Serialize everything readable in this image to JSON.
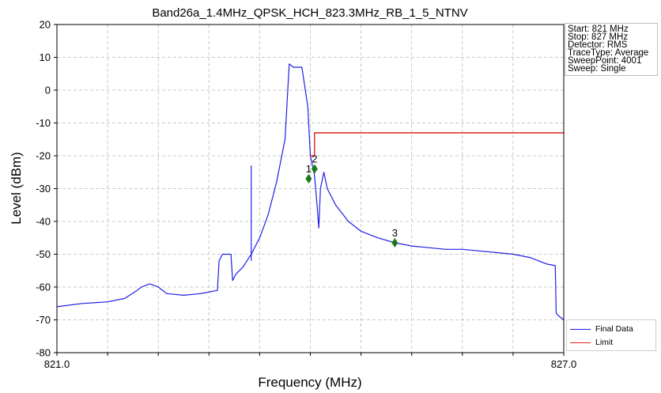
{
  "chart_data": {
    "type": "line",
    "title": "Band26a_1.4MHz_QPSK_HCH_823.3MHz_RB_1_5_NTNV",
    "xlabel": "Frequency (MHz)",
    "ylabel": "Level (dBm)",
    "xlim": [
      821.0,
      827.0
    ],
    "ylim": [
      -80,
      20
    ],
    "x_tick_labels": [
      "821.0",
      "827.0"
    ],
    "x_minor_ticks": [
      821.6,
      822.2,
      822.8,
      823.4,
      824.0,
      824.6,
      825.2,
      825.8,
      826.4
    ],
    "y_ticks": [
      -80,
      -70,
      -60,
      -50,
      -40,
      -30,
      -20,
      -10,
      0,
      10,
      20
    ],
    "grid": true,
    "legend_position": "bottom-right",
    "colors": {
      "final_data": "#1f1fe6",
      "limit": "#e02020",
      "marker": "#1a7a1a"
    },
    "series": [
      {
        "name": "Final Data",
        "x": [
          821.0,
          821.3,
          821.6,
          821.8,
          821.95,
          822.0,
          822.1,
          822.2,
          822.3,
          822.5,
          822.7,
          822.9,
          822.92,
          822.96,
          823.06,
          823.08,
          823.12,
          823.2,
          823.3,
          823.4,
          823.5,
          823.6,
          823.7,
          823.75,
          823.8,
          823.9,
          823.97,
          824.0,
          824.05,
          824.08,
          824.1,
          824.12,
          824.16,
          824.2,
          824.3,
          824.45,
          824.6,
          824.8,
          825.0,
          825.2,
          825.4,
          825.6,
          825.8,
          826.0,
          826.2,
          826.4,
          826.6,
          826.8,
          826.9,
          826.91,
          826.95,
          827.0
        ],
        "y": [
          -66,
          -65,
          -64.5,
          -63.5,
          -61,
          -60,
          -59,
          -60,
          -62,
          -62.5,
          -62,
          -61,
          -52,
          -50,
          -50,
          -58,
          -56,
          -54,
          -50,
          -45,
          -38,
          -28,
          -15,
          8,
          7,
          7,
          -5,
          -20,
          -26,
          -35,
          -42,
          -30,
          -25,
          -30,
          -35,
          -40,
          -43,
          -45,
          -46.5,
          -47.5,
          -48,
          -48.5,
          -48.5,
          -49,
          -49.5,
          -50,
          -51,
          -53,
          -53.5,
          -68,
          -69,
          -70
        ]
      },
      {
        "name": "Limit",
        "x": [
          824.0,
          824.05,
          824.05,
          827.0
        ],
        "y": [
          -20,
          -20,
          -13,
          -13
        ]
      }
    ],
    "markers": [
      {
        "label": "1",
        "x": 823.98,
        "y": -27
      },
      {
        "label": "2",
        "x": 824.05,
        "y": -24
      },
      {
        "label": "3",
        "x": 825.0,
        "y": -46.5
      }
    ],
    "spur": {
      "x": 823.3,
      "y": -23
    }
  },
  "info_box": {
    "lines": [
      "Start: 821 MHz",
      "Stop: 827 MHz",
      "Detector: RMS",
      "TraceType: Average",
      "SweepPoint: 4001",
      "Sweep: Single"
    ]
  },
  "legend": {
    "items": [
      {
        "label": "Final Data"
      },
      {
        "label": "Limit"
      }
    ]
  }
}
